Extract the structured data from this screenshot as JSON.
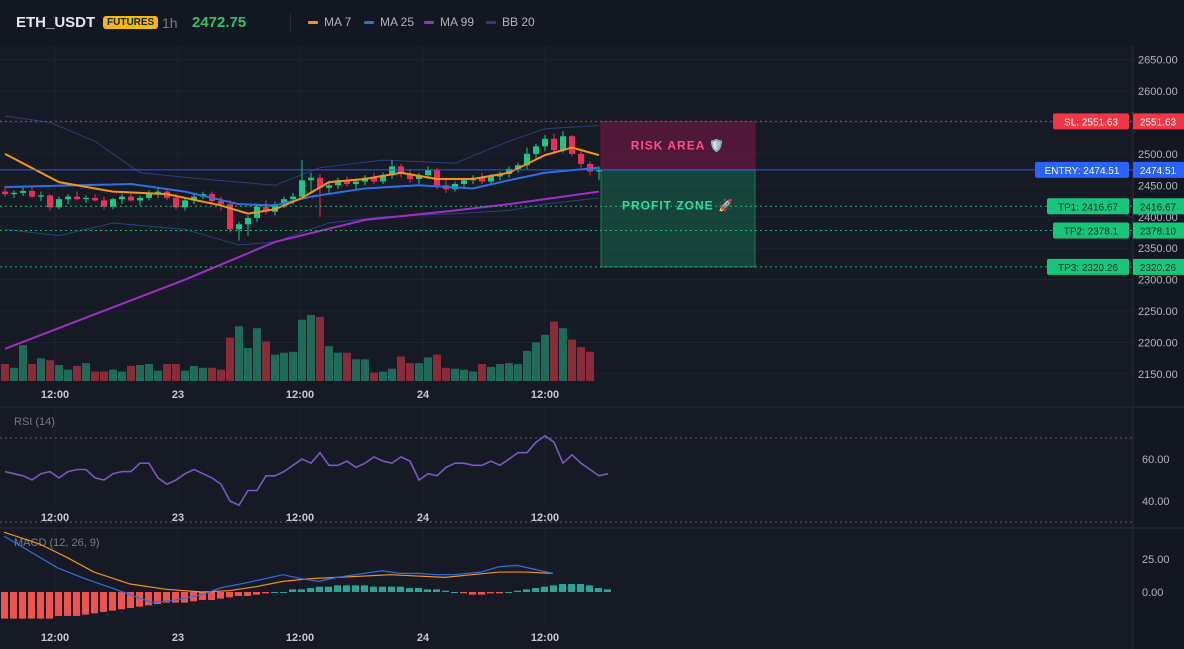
{
  "header": {
    "symbol": "ETH_USDT",
    "badge": "FUTURES",
    "timeframe": "1h",
    "last_price": "2472.75",
    "legend": [
      {
        "label": "MA 7",
        "color": "#f7931a"
      },
      {
        "label": "MA 25",
        "color": "#2f6fe4"
      },
      {
        "label": "MA 99",
        "color": "#a22ec7"
      },
      {
        "label": "BB 20",
        "color": "#2c3e83"
      }
    ]
  },
  "chart_data": [
    {
      "type": "candlestick",
      "y_ticks": [
        "2650.00",
        "2600.00",
        "2550.00",
        "2500.00",
        "2450.00",
        "2400.00",
        "2350.00",
        "2300.00",
        "2250.00",
        "2200.00",
        "2150.00"
      ],
      "ylim": [
        2125,
        2665
      ],
      "x_ticks": [
        "12:00",
        "23",
        "12:00",
        "24",
        "12:00"
      ],
      "candles": [
        [
          2440,
          2448,
          2432,
          2436
        ],
        [
          2436,
          2442,
          2430,
          2438
        ],
        [
          2438,
          2446,
          2433,
          2441
        ],
        [
          2441,
          2447,
          2430,
          2432
        ],
        [
          2432,
          2440,
          2425,
          2434
        ],
        [
          2434,
          2436,
          2410,
          2415
        ],
        [
          2415,
          2432,
          2412,
          2428
        ],
        [
          2428,
          2436,
          2420,
          2432
        ],
        [
          2432,
          2440,
          2426,
          2428
        ],
        [
          2428,
          2434,
          2422,
          2430
        ],
        [
          2430,
          2436,
          2424,
          2426
        ],
        [
          2426,
          2432,
          2412,
          2416
        ],
        [
          2416,
          2430,
          2412,
          2428
        ],
        [
          2428,
          2436,
          2420,
          2432
        ],
        [
          2432,
          2438,
          2424,
          2426
        ],
        [
          2426,
          2434,
          2418,
          2430
        ],
        [
          2430,
          2442,
          2426,
          2438
        ],
        [
          2438,
          2446,
          2430,
          2440
        ],
        [
          2440,
          2444,
          2426,
          2430
        ],
        [
          2430,
          2436,
          2412,
          2415
        ],
        [
          2415,
          2430,
          2410,
          2426
        ],
        [
          2426,
          2436,
          2420,
          2432
        ],
        [
          2432,
          2440,
          2428,
          2436
        ],
        [
          2436,
          2440,
          2420,
          2425
        ],
        [
          2425,
          2432,
          2410,
          2420
        ],
        [
          2420,
          2426,
          2375,
          2380
        ],
        [
          2380,
          2392,
          2362,
          2388
        ],
        [
          2388,
          2402,
          2370,
          2398
        ],
        [
          2398,
          2420,
          2392,
          2416
        ],
        [
          2416,
          2426,
          2404,
          2408
        ],
        [
          2408,
          2424,
          2402,
          2420
        ],
        [
          2420,
          2432,
          2414,
          2428
        ],
        [
          2428,
          2438,
          2420,
          2432
        ],
        [
          2432,
          2490,
          2428,
          2458
        ],
        [
          2458,
          2470,
          2440,
          2462
        ],
        [
          2462,
          2468,
          2400,
          2446
        ],
        [
          2446,
          2456,
          2438,
          2450
        ],
        [
          2450,
          2462,
          2444,
          2458
        ],
        [
          2458,
          2464,
          2448,
          2452
        ],
        [
          2452,
          2460,
          2444,
          2456
        ],
        [
          2456,
          2466,
          2450,
          2462
        ],
        [
          2462,
          2470,
          2452,
          2456
        ],
        [
          2456,
          2470,
          2452,
          2466
        ],
        [
          2466,
          2490,
          2460,
          2480
        ],
        [
          2480,
          2484,
          2462,
          2468
        ],
        [
          2468,
          2476,
          2454,
          2460
        ],
        [
          2460,
          2470,
          2452,
          2466
        ],
        [
          2466,
          2480,
          2460,
          2474
        ],
        [
          2474,
          2478,
          2444,
          2450
        ],
        [
          2450,
          2462,
          2438,
          2444
        ],
        [
          2444,
          2456,
          2440,
          2452
        ],
        [
          2452,
          2462,
          2446,
          2458
        ],
        [
          2458,
          2466,
          2452,
          2462
        ],
        [
          2462,
          2470,
          2452,
          2456
        ],
        [
          2456,
          2468,
          2450,
          2464
        ],
        [
          2464,
          2472,
          2458,
          2468
        ],
        [
          2468,
          2480,
          2462,
          2476
        ],
        [
          2476,
          2486,
          2470,
          2482
        ],
        [
          2482,
          2510,
          2476,
          2500
        ],
        [
          2500,
          2516,
          2490,
          2512
        ],
        [
          2512,
          2530,
          2504,
          2524
        ],
        [
          2524,
          2532,
          2500,
          2506
        ],
        [
          2506,
          2536,
          2502,
          2528
        ],
        [
          2528,
          2530,
          2496,
          2500
        ],
        [
          2500,
          2504,
          2478,
          2484
        ],
        [
          2484,
          2488,
          2466,
          2472
        ],
        [
          2472,
          2480,
          2458,
          2474
        ]
      ],
      "volumes": [
        18,
        14,
        38,
        18,
        24,
        22,
        17,
        12,
        16,
        19,
        10,
        10,
        12,
        10,
        16,
        17,
        18,
        11,
        18,
        18,
        11,
        16,
        14,
        14,
        12,
        46,
        58,
        35,
        56,
        42,
        28,
        30,
        31,
        65,
        70,
        68,
        37,
        30,
        30,
        23,
        23,
        9,
        10,
        13,
        26,
        19,
        19,
        25,
        28,
        14,
        13,
        12,
        10,
        18,
        15,
        18,
        19,
        18,
        32,
        41,
        49,
        63,
        56,
        44,
        36,
        31
      ],
      "ma7": [
        [
          0,
          2500
        ],
        [
          6,
          2455
        ],
        [
          12,
          2440
        ],
        [
          18,
          2436
        ],
        [
          24,
          2418
        ],
        [
          27,
          2405
        ],
        [
          30,
          2412
        ],
        [
          33,
          2430
        ],
        [
          36,
          2455
        ],
        [
          40,
          2460
        ],
        [
          44,
          2470
        ],
        [
          48,
          2460
        ],
        [
          52,
          2460
        ],
        [
          56,
          2470
        ],
        [
          60,
          2498
        ],
        [
          63,
          2510
        ],
        [
          66,
          2498
        ]
      ],
      "ma25": [
        [
          0,
          2447
        ],
        [
          8,
          2450
        ],
        [
          14,
          2452
        ],
        [
          20,
          2440
        ],
        [
          26,
          2420
        ],
        [
          30,
          2418
        ],
        [
          34,
          2432
        ],
        [
          40,
          2445
        ],
        [
          46,
          2450
        ],
        [
          52,
          2445
        ],
        [
          56,
          2458
        ],
        [
          60,
          2470
        ],
        [
          66,
          2478
        ]
      ],
      "ma99": [
        [
          0,
          2190
        ],
        [
          10,
          2245
        ],
        [
          20,
          2300
        ],
        [
          30,
          2360
        ],
        [
          40,
          2395
        ],
        [
          50,
          2410
        ],
        [
          56,
          2420
        ],
        [
          66,
          2440
        ]
      ],
      "bb_upper": [
        [
          0,
          2560
        ],
        [
          5,
          2550
        ],
        [
          10,
          2520
        ],
        [
          15,
          2470
        ],
        [
          22,
          2460
        ],
        [
          30,
          2450
        ],
        [
          35,
          2478
        ],
        [
          42,
          2490
        ],
        [
          50,
          2485
        ],
        [
          56,
          2520
        ],
        [
          60,
          2540
        ],
        [
          66,
          2545
        ]
      ],
      "bb_lower": [
        [
          0,
          2380
        ],
        [
          6,
          2370
        ],
        [
          12,
          2390
        ],
        [
          20,
          2380
        ],
        [
          26,
          2355
        ],
        [
          30,
          2360
        ],
        [
          36,
          2390
        ],
        [
          42,
          2400
        ],
        [
          50,
          2405
        ],
        [
          56,
          2410
        ],
        [
          60,
          2420
        ],
        [
          66,
          2430
        ]
      ],
      "zones": {
        "risk_label": "RISK AREA 🛡️",
        "profit_label": "PROFIT ZONE 🚀"
      },
      "levels": [
        {
          "name": "SL",
          "value": 2551.63,
          "label": "SL: 2551.63",
          "axis_label": "2551.63",
          "color": "#f23645"
        },
        {
          "name": "ENTRY",
          "value": 2474.51,
          "label": "ENTRY: 2474.51",
          "axis_label": "2474.51",
          "color": "#2962ff"
        },
        {
          "name": "TP1",
          "value": 2416.67,
          "label": "TP1: 2416.67",
          "axis_label": "2416.67",
          "color": "#16c77a"
        },
        {
          "name": "TP2",
          "value": 2378.1,
          "label": "TP2: 2378.1",
          "axis_label": "2378.10",
          "color": "#16c77a"
        },
        {
          "name": "TP3",
          "value": 2320.26,
          "label": "TP3: 2320.26",
          "axis_label": "2320.26",
          "color": "#16c77a"
        }
      ]
    },
    {
      "type": "line",
      "title": "RSI (14)",
      "y_ticks": [
        "60.00",
        "40.00"
      ],
      "ylim": [
        30,
        75
      ],
      "bands": [
        70,
        30
      ],
      "x_ticks": [
        "12:00",
        "23",
        "12:00",
        "24",
        "12:00"
      ],
      "values": [
        54,
        53,
        52,
        50,
        53,
        54,
        51,
        54,
        55,
        55,
        51,
        50,
        53,
        54,
        54,
        58,
        58,
        51,
        48,
        50,
        53,
        55,
        53,
        51,
        48,
        40,
        38,
        45,
        45,
        52,
        52,
        54,
        57,
        60,
        58,
        63,
        57,
        57,
        59,
        56,
        58,
        61,
        59,
        58,
        61,
        59,
        50,
        53,
        52,
        56,
        58,
        58,
        57,
        57,
        59,
        57,
        60,
        63,
        63,
        68,
        71,
        68,
        58,
        62,
        58,
        55,
        52,
        53
      ]
    },
    {
      "type": "bar",
      "title": "MACD (12, 26, 9)",
      "y_ticks": [
        "25.00",
        "0.00"
      ],
      "ylim": [
        -38,
        50
      ],
      "x_ticks": [
        "12:00",
        "23",
        "12:00",
        "24",
        "12:00"
      ],
      "histogram": [
        -20,
        -20,
        -20,
        -20,
        -20,
        -20,
        -18,
        -18,
        -18,
        -17,
        -16,
        -15,
        -14,
        -13,
        -12,
        -11,
        -10,
        -9,
        -8,
        -8,
        -8,
        -7,
        -6,
        -6,
        -5,
        -4,
        -3,
        -3,
        -2,
        -1,
        0,
        0,
        2,
        2,
        3,
        4,
        4,
        5,
        5,
        5,
        5,
        4,
        4,
        4,
        4,
        3,
        3,
        2,
        2,
        1,
        0,
        -1,
        -2,
        -2,
        -1,
        -1,
        0,
        1,
        2,
        3,
        4,
        5,
        6,
        6,
        6,
        5,
        3,
        2
      ],
      "macd": [
        [
          0,
          42
        ],
        [
          6,
          30
        ],
        [
          12,
          18
        ],
        [
          18,
          10
        ],
        [
          24,
          3
        ],
        [
          28,
          -2
        ],
        [
          33,
          -8
        ],
        [
          38,
          -6
        ],
        [
          44,
          -2
        ],
        [
          48,
          3
        ],
        [
          54,
          7
        ],
        [
          58,
          10
        ],
        [
          62,
          13
        ],
        [
          66,
          10
        ],
        [
          70,
          8
        ],
        [
          74,
          11
        ],
        [
          78,
          13
        ],
        [
          84,
          16
        ],
        [
          88,
          14
        ],
        [
          92,
          14
        ],
        [
          96,
          13
        ],
        [
          100,
          13
        ],
        [
          106,
          15
        ],
        [
          110,
          19
        ],
        [
          114,
          20
        ],
        [
          118,
          17
        ],
        [
          122,
          14
        ]
      ],
      "signal": [
        [
          0,
          45
        ],
        [
          8,
          36
        ],
        [
          14,
          26
        ],
        [
          20,
          15
        ],
        [
          28,
          6
        ],
        [
          36,
          2
        ],
        [
          44,
          0
        ],
        [
          50,
          1
        ],
        [
          56,
          4
        ],
        [
          62,
          8
        ],
        [
          68,
          10
        ],
        [
          74,
          11
        ],
        [
          80,
          12
        ],
        [
          86,
          13
        ],
        [
          92,
          12
        ],
        [
          98,
          11
        ],
        [
          104,
          13
        ],
        [
          110,
          15
        ],
        [
          116,
          15
        ],
        [
          122,
          14
        ]
      ]
    }
  ]
}
